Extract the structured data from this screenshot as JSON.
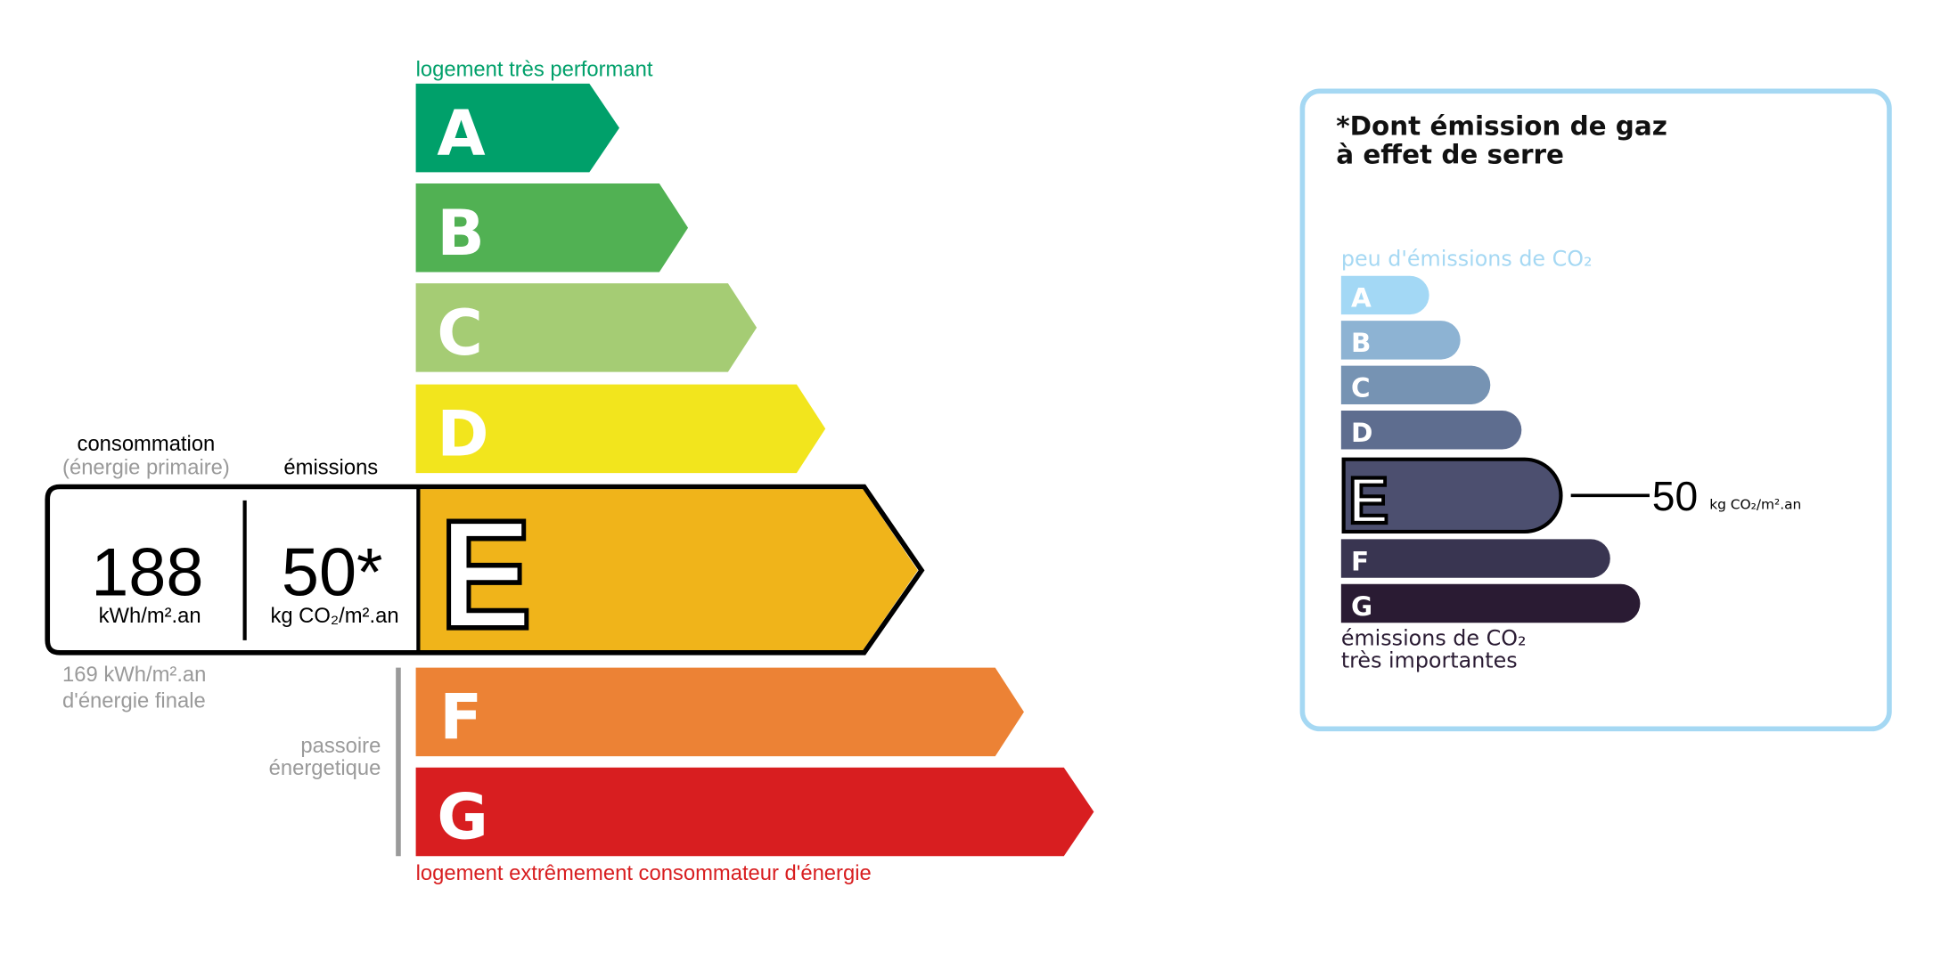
{
  "energy": {
    "top_label": "logement très performant",
    "bottom_label": "logement extrêmement consommateur d'énergie",
    "classes": [
      {
        "letter": "A",
        "color": "#00a06a"
      },
      {
        "letter": "B",
        "color": "#51b153"
      },
      {
        "letter": "C",
        "color": "#a5cc74"
      },
      {
        "letter": "D",
        "color": "#f2e51d"
      },
      {
        "letter": "E",
        "color": "#f0b41a"
      },
      {
        "letter": "F",
        "color": "#ec8235"
      },
      {
        "letter": "G",
        "color": "#d81e20"
      }
    ],
    "current_class": "E",
    "consumption_label": "consommation",
    "consumption_sub": "(énergie primaire)",
    "emissions_label": "émissions",
    "consumption_value": "188",
    "consumption_unit": "kWh/m².an",
    "emissions_value": "50*",
    "emissions_unit": "kg CO₂/m².an",
    "final_energy_line1": "169 kWh/m².an",
    "final_energy_line2": "d'énergie finale",
    "passoire_line1": "passoire",
    "passoire_line2": "énergetique"
  },
  "ges": {
    "title_line1": "*Dont émission de gaz",
    "title_line2": "à effet de serre",
    "top_label": "peu d'émissions de CO₂",
    "bottom_line1": "émissions de CO₂",
    "bottom_line2": "très importantes",
    "border_color": "#a5d8f3",
    "classes": [
      {
        "letter": "A",
        "color": "#a3d8f5"
      },
      {
        "letter": "B",
        "color": "#8db3d3"
      },
      {
        "letter": "C",
        "color": "#7693b3"
      },
      {
        "letter": "D",
        "color": "#5e6d8f"
      },
      {
        "letter": "E",
        "color": "#4c4f6f"
      },
      {
        "letter": "F",
        "color": "#393551"
      },
      {
        "letter": "G",
        "color": "#2a1b33"
      }
    ],
    "current_class": "E",
    "value": "50",
    "unit": "kg CO₂/m².an"
  }
}
